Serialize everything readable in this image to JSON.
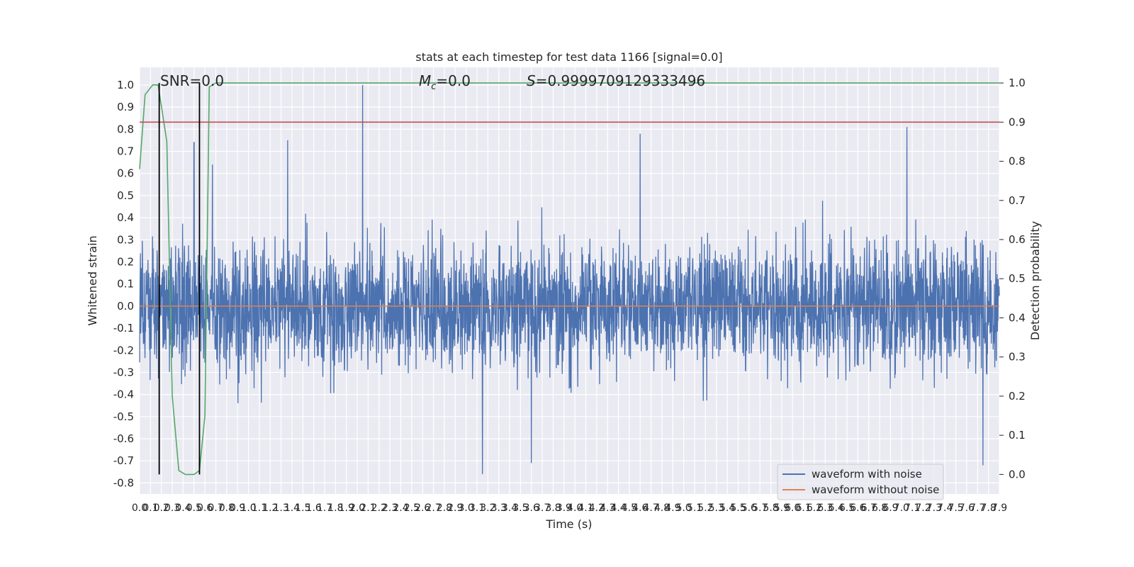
{
  "chart_data": {
    "type": "line",
    "title": "stats at each timestep for test data 1166 [signal=0.0]",
    "xlabel": "Time (s)",
    "ylabel_left": "Whitened strain",
    "ylabel_right": "Detection probability",
    "xlim": [
      0.0,
      7.9
    ],
    "ylim_left": [
      -0.85,
      1.08
    ],
    "ylim_right": [
      -0.05,
      1.04
    ],
    "x_tick_step": 0.1,
    "left_ticks": [
      -0.8,
      -0.7,
      -0.6,
      -0.5,
      -0.4,
      -0.3,
      -0.2,
      -0.1,
      0.0,
      0.1,
      0.2,
      0.3,
      0.4,
      0.5,
      0.6,
      0.7,
      0.8,
      0.9,
      1.0
    ],
    "right_ticks": [
      0.0,
      0.1,
      0.2,
      0.3,
      0.4,
      0.5,
      0.6,
      0.7,
      0.8,
      0.9,
      1.0
    ],
    "grid": true,
    "legend_position": "lower right",
    "annotations": {
      "snr": "SNR=0.0",
      "mc_symbol": "M",
      "mc_sub": "c",
      "mc_value": "=0.0",
      "s_symbol": "S",
      "s_value": "=0.9999709129333496"
    },
    "series": [
      {
        "name": "waveform with noise",
        "color": "#4c72b0",
        "axis": "left",
        "description_of_envelope": "dense noise, typical amplitude ±0.3, peaks up to ~1.0 at t≈2.05 s",
        "peaks": [
          {
            "x": 0.5,
            "y": 0.74
          },
          {
            "x": 0.67,
            "y": 0.64
          },
          {
            "x": 1.36,
            "y": 0.75
          },
          {
            "x": 2.05,
            "y": 1.0
          },
          {
            "x": 4.6,
            "y": 0.78
          },
          {
            "x": 7.05,
            "y": 0.81
          },
          {
            "x": 3.15,
            "y": -0.76
          },
          {
            "x": 3.6,
            "y": -0.71
          },
          {
            "x": 7.75,
            "y": -0.72
          }
        ],
        "amplitude": 0.32,
        "clip": [
          -0.77,
          1.0
        ]
      },
      {
        "name": "waveform without noise",
        "color": "#dd8452",
        "axis": "left",
        "x": [
          0.0,
          7.9
        ],
        "y": [
          0.0,
          0.0
        ]
      },
      {
        "name": "",
        "color": "#55a868",
        "axis": "right",
        "x": [
          0.0,
          0.05,
          0.12,
          0.17,
          0.25,
          0.3,
          0.36,
          0.42,
          0.5,
          0.55,
          0.6,
          0.64,
          0.7,
          7.9
        ],
        "y": [
          0.78,
          0.97,
          0.995,
          0.995,
          0.85,
          0.2,
          0.01,
          0.0,
          0.0,
          0.01,
          0.15,
          0.99,
          1.0,
          1.0
        ]
      },
      {
        "name": "",
        "color": "#c44e52",
        "axis": "right",
        "x": [
          0.0,
          7.9
        ],
        "y": [
          0.9,
          0.9
        ]
      }
    ],
    "vlines": [
      {
        "x": 0.18,
        "ymin": 0.0,
        "ymax": 1.0,
        "axis": "right",
        "color": "#000000"
      },
      {
        "x": 0.55,
        "ymin": 0.0,
        "ymax": 1.0,
        "axis": "right",
        "color": "#000000"
      }
    ]
  }
}
